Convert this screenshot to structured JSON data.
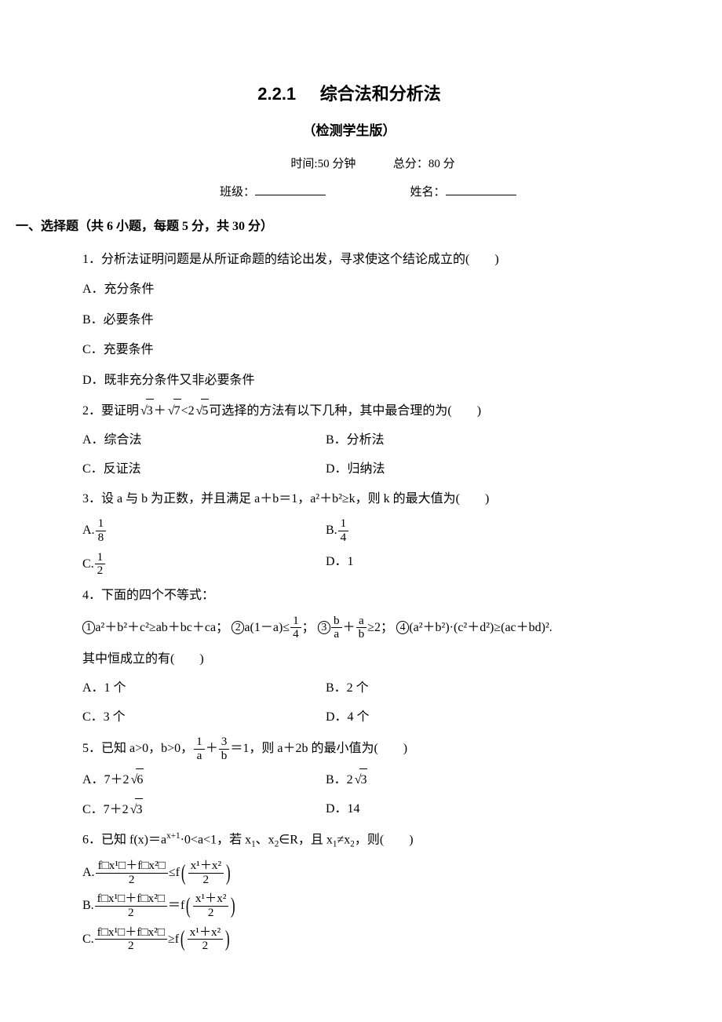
{
  "header": {
    "chapter": "2.2.1",
    "title": "综合法和分析法",
    "subtitle": "（检测学生版）",
    "time_label": "时间:50 分钟",
    "score_label": "总分：80 分",
    "class_label": "班级：",
    "name_label": "姓名："
  },
  "section1": {
    "heading": "一、选择题（共 6 小题，每题 5 分，共 30 分）",
    "q1": {
      "stem": "1．分析法证明问题是从所证命题的结论出发，寻求使这个结论成立的(　　)",
      "A": "A．充分条件",
      "B": "B．必要条件",
      "C": "C．充要条件",
      "D": "D．既非充分条件又非必要条件"
    },
    "q2": {
      "stem_pre": "2．要证明",
      "stem_post": "可选择的方法有以下几种，其中最合理的为(　　)",
      "A": "A．综合法",
      "B": "B．分析法",
      "C": "C．反证法",
      "D": "D．归纳法"
    },
    "q3": {
      "stem": "3．设 a 与 b 为正数，并且满足 a＋b＝1，a²＋b²≥k，则 k 的最大值为(　　)",
      "A_label": "A.",
      "A_num": "1",
      "A_den": "8",
      "B_label": "B.",
      "B_num": "1",
      "B_den": "4",
      "C_label": "C.",
      "C_num": "1",
      "C_den": "2",
      "D": "D．1"
    },
    "q4": {
      "stem": "4．下面的四个不等式：",
      "item1": "a²＋b²＋c²≥ab＋bc＋ca；",
      "item2_pre": "a(1－a)≤",
      "item2_num": "1",
      "item2_den": "4",
      "item2_post": "；",
      "item3_n1": "b",
      "item3_d1": "a",
      "item3_n2": "a",
      "item3_d2": "b",
      "item3_post": "≥2；",
      "item4": "(a²＋b²)·(c²＋d²)≥(ac＋bd)².",
      "tail": "其中恒成立的有(　　)",
      "A": "A．1 个",
      "B": "B．2 个",
      "C": "C．3 个",
      "D": "D．4 个"
    },
    "q5": {
      "stem_pre": "5．已知 a>0，b>0，",
      "f1n": "1",
      "f1d": "a",
      "f2n": "3",
      "f2d": "b",
      "stem_post": "＝1，则 a＋2b 的最小值为(　　)",
      "A_label": "A．7＋2",
      "A_rad": "6",
      "B_label": "B．2",
      "B_rad": "3",
      "C_label": "C．7＋2",
      "C_rad": "3",
      "D": "D．14"
    },
    "q6": {
      "stem_pre": "6．已知 f(x)＝a",
      "stem_mid1": "0<a<1，若 x",
      "stem_mid2": "、x",
      "stem_mid3": "∈R，且 x",
      "stem_mid4": "≠x",
      "stem_post": "，则(　　)",
      "A_label": "A.",
      "rel_A": "≤f",
      "B_label": "B.",
      "rel_B": "＝f",
      "C_label": "C.",
      "rel_C": "≥f",
      "lhs_num": "f□x¹□＋f□x²□",
      "lhs_den": "2",
      "rhs_num": "x¹＋x²",
      "rhs_den": "2"
    }
  }
}
